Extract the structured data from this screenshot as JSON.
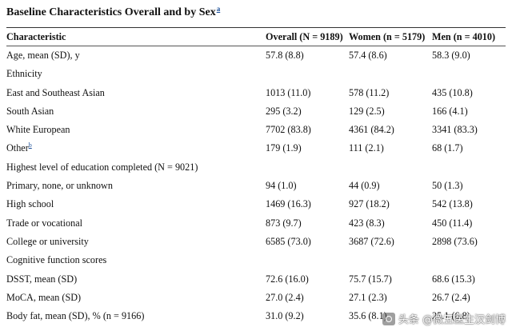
{
  "title": {
    "text": "Baseline Characteristics Overall and by Sex",
    "footnote": "a"
  },
  "header": {
    "characteristic": "Characteristic",
    "overall": "Overall (N = 9189)",
    "women": "Women (n = 5179)",
    "men": "Men (n = 4010)"
  },
  "rows": [
    {
      "label": "Age, mean (SD), y",
      "overall": "57.8 (8.8)",
      "women": "57.4 (8.6)",
      "men": "58.3 (9.0)"
    },
    {
      "label": "Ethnicity",
      "overall": "",
      "women": "",
      "men": ""
    },
    {
      "label": "East and Southeast Asian",
      "overall": "1013 (11.0)",
      "women": "578 (11.2)",
      "men": "435 (10.8)"
    },
    {
      "label": "South Asian",
      "overall": "295 (3.2)",
      "women": "129 (2.5)",
      "men": "166 (4.1)"
    },
    {
      "label": "White European",
      "overall": "7702 (83.8)",
      "women": "4361 (84.2)",
      "men": "3341 (83.3)"
    },
    {
      "label": "Other",
      "footnote": "b",
      "overall": "179 (1.9)",
      "women": "111 (2.1)",
      "men": "68 (1.7)"
    },
    {
      "label": "Highest level of education completed (N = 9021)",
      "overall": "",
      "women": "",
      "men": ""
    },
    {
      "label": "Primary, none, or unknown",
      "overall": "94 (1.0)",
      "women": "44 (0.9)",
      "men": "50 (1.3)"
    },
    {
      "label": "High school",
      "overall": "1469 (16.3)",
      "women": "927 (18.2)",
      "men": "542 (13.8)"
    },
    {
      "label": "Trade or vocational",
      "overall": "873 (9.7)",
      "women": "423 (8.3)",
      "men": "450 (11.4)"
    },
    {
      "label": "College or university",
      "overall": "6585 (73.0)",
      "women": "3687 (72.6)",
      "men": "2898 (73.6)"
    },
    {
      "label": "Cognitive function scores",
      "overall": "",
      "women": "",
      "men": ""
    },
    {
      "label": "DSST, mean (SD)",
      "overall": "72.6 (16.0)",
      "women": "75.7 (15.7)",
      "men": "68.6 (15.3)"
    },
    {
      "label": "MoCA, mean (SD)",
      "overall": "27.0 (2.4)",
      "women": "27.1 (2.3)",
      "men": "26.7 (2.4)"
    },
    {
      "label": "Body fat, mean (SD), % (n = 9166)",
      "overall": "31.0 (9.2)",
      "women": "35.6 (8.1)",
      "men": "25.1 (6.8)"
    }
  ],
  "watermark": {
    "text": "头条 @微五医生汉剑博"
  }
}
